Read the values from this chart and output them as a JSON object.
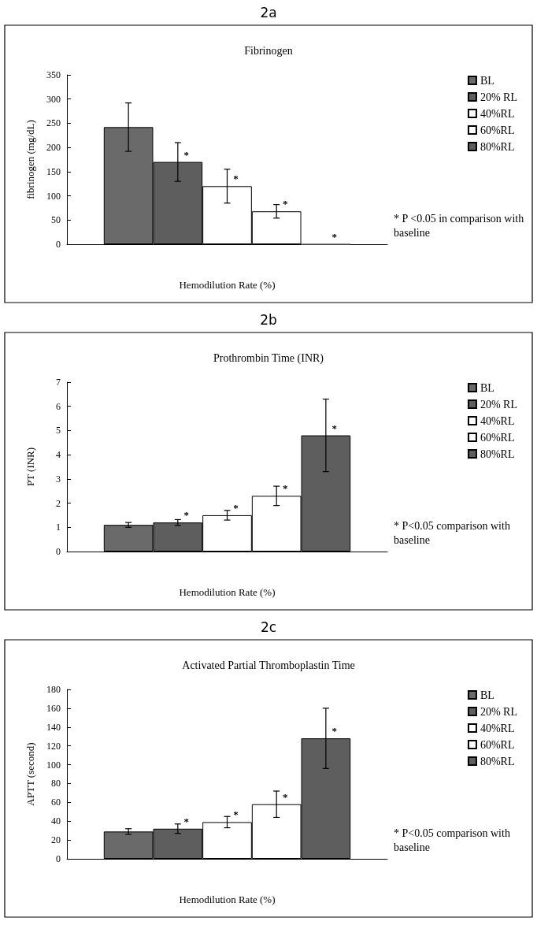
{
  "chart_data": [
    {
      "type": "bar",
      "title": "2a",
      "subtitle": "Fibrinogen",
      "xlabel": "Hemodilution Rate (%)",
      "ylabel": "fibrinogen (mg/dL)",
      "categories": [
        null
      ],
      "ylim": [
        0,
        350
      ],
      "yticks": [
        0,
        50,
        100,
        150,
        200,
        250,
        300,
        350
      ],
      "grid": false,
      "legend": "right",
      "annotations": [
        "* P <0.05 in comparison with baseline"
      ],
      "series": [
        {
          "name": "BL",
          "color": "#6a6a6a",
          "values": [
            242
          ],
          "errors": [
            50
          ]
        },
        {
          "name": "20% RL",
          "color": "#5e5e5e",
          "values": [
            170
          ],
          "errors": [
            40
          ],
          "value_labels": [
            "*"
          ]
        },
        {
          "name": "40%RL",
          "color": "#ffffff",
          "values": [
            120
          ],
          "errors": [
            35
          ],
          "value_labels": [
            "*"
          ]
        },
        {
          "name": "60%RL",
          "color": "#ffffff",
          "values": [
            68
          ],
          "errors": [
            14
          ],
          "value_labels": [
            "*"
          ]
        },
        {
          "name": "80%RL",
          "color": "#5e5e5e",
          "values": [
            0
          ],
          "errors": [
            null
          ],
          "value_labels": [
            "*"
          ]
        }
      ]
    },
    {
      "type": "bar",
      "title": "2b",
      "subtitle": "Prothrombin Time (INR)",
      "xlabel": "Hemodilution Rate (%)",
      "ylabel": "PT (INR)",
      "categories": [
        null
      ],
      "ylim": [
        0,
        7
      ],
      "yticks": [
        0,
        1,
        2,
        3,
        4,
        5,
        6,
        7
      ],
      "grid": false,
      "legend": "right",
      "annotations": [
        "* P<0.05 comparison with baseline"
      ],
      "series": [
        {
          "name": "BL",
          "color": "#6a6a6a",
          "values": [
            1.1
          ],
          "errors": [
            0.1
          ]
        },
        {
          "name": "20% RL",
          "color": "#5e5e5e",
          "values": [
            1.2
          ],
          "errors": [
            0.12
          ],
          "value_labels": [
            "*"
          ]
        },
        {
          "name": "40%RL",
          "color": "#ffffff",
          "values": [
            1.5
          ],
          "errors": [
            0.2
          ],
          "value_labels": [
            "*"
          ]
        },
        {
          "name": "60%RL",
          "color": "#ffffff",
          "values": [
            2.3
          ],
          "errors": [
            0.4
          ],
          "value_labels": [
            "*"
          ]
        },
        {
          "name": "80%RL",
          "color": "#5e5e5e",
          "values": [
            4.8
          ],
          "errors": [
            1.5
          ],
          "value_labels": [
            "*"
          ]
        }
      ]
    },
    {
      "type": "bar",
      "title": "2c",
      "subtitle": "Activated Partial Thromboplastin Time",
      "xlabel": "Hemodilution Rate (%)",
      "ylabel": "APTT (second)",
      "categories": [
        null
      ],
      "ylim": [
        0,
        180
      ],
      "yticks": [
        0,
        20,
        40,
        60,
        80,
        100,
        120,
        140,
        160,
        180
      ],
      "grid": false,
      "legend": "right",
      "annotations": [
        "* P<0.05 comparison with baseline"
      ],
      "series": [
        {
          "name": "BL",
          "color": "#6a6a6a",
          "values": [
            29
          ],
          "errors": [
            3
          ]
        },
        {
          "name": "20% RL",
          "color": "#5e5e5e",
          "values": [
            32
          ],
          "errors": [
            5
          ],
          "value_labels": [
            "*"
          ]
        },
        {
          "name": "40%RL",
          "color": "#ffffff",
          "values": [
            39
          ],
          "errors": [
            6
          ],
          "value_labels": [
            "*"
          ]
        },
        {
          "name": "60%RL",
          "color": "#ffffff",
          "values": [
            58
          ],
          "errors": [
            14
          ],
          "value_labels": [
            "*"
          ]
        },
        {
          "name": "80%RL",
          "color": "#5e5e5e",
          "values": [
            128
          ],
          "errors": [
            32
          ],
          "value_labels": [
            "*"
          ]
        }
      ]
    }
  ]
}
